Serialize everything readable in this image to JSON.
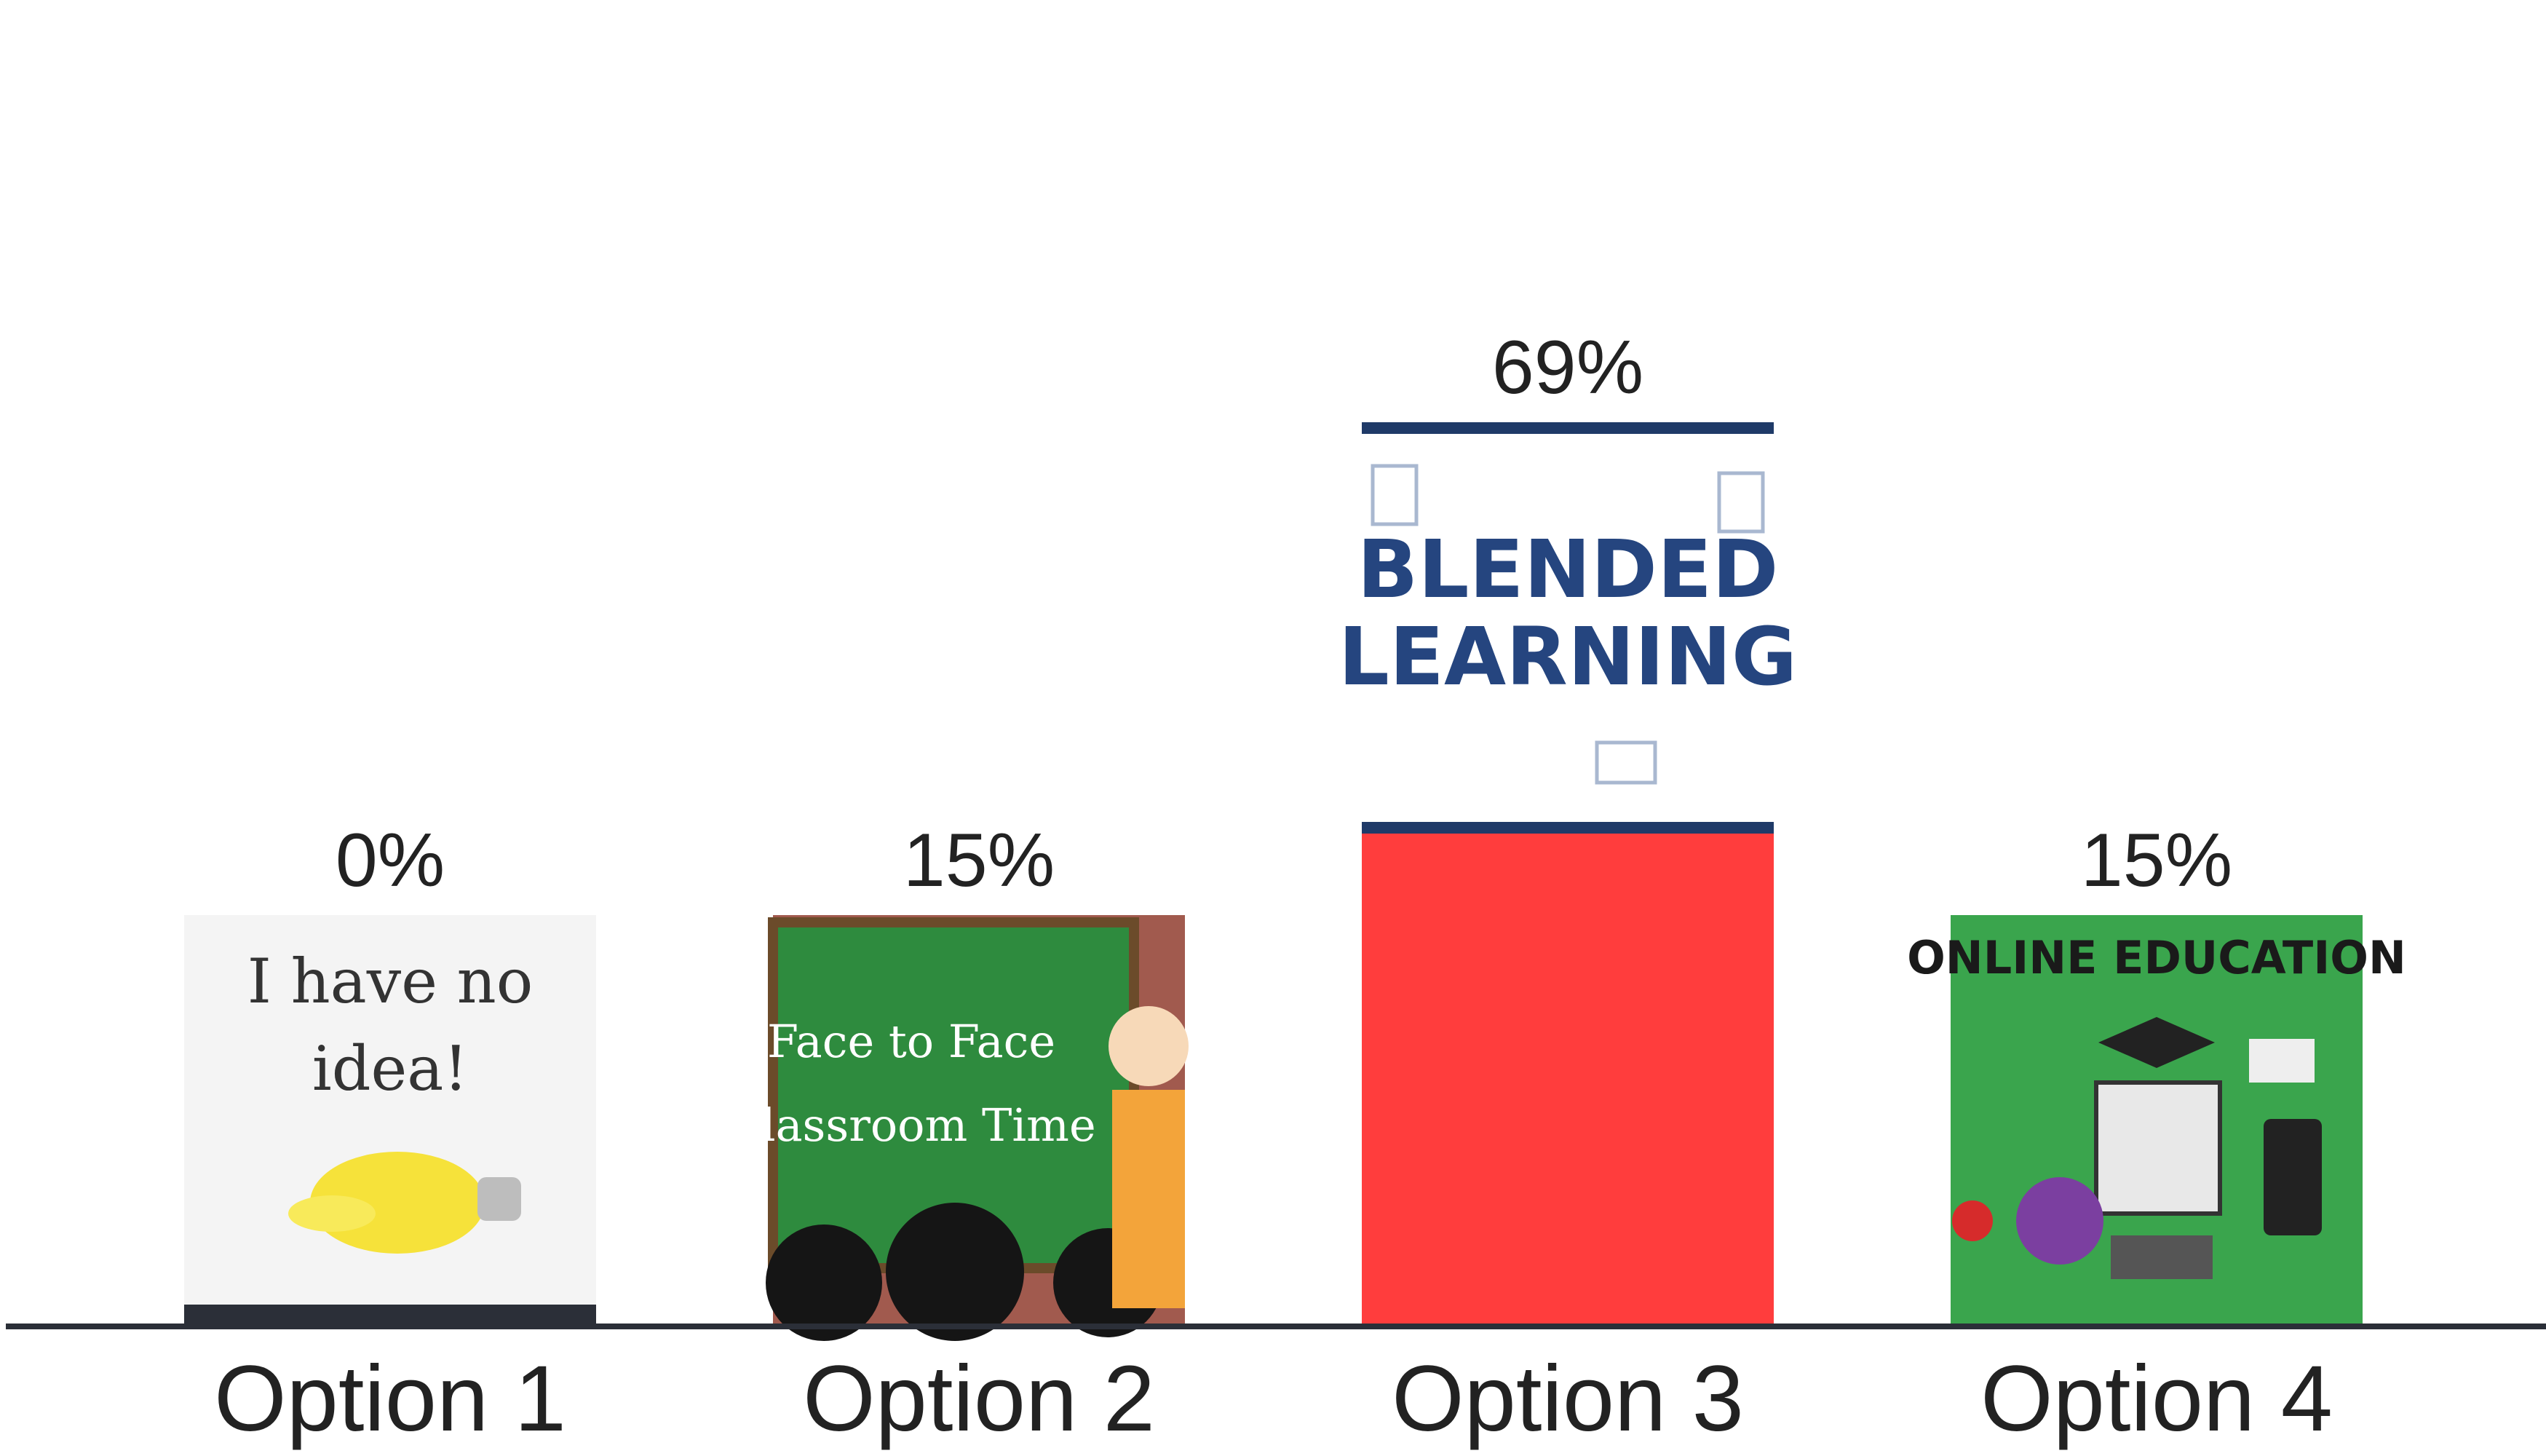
{
  "chart_data": {
    "type": "bar",
    "title": "",
    "xlabel": "",
    "ylabel": "",
    "ylim": [
      0,
      100
    ],
    "grid": false,
    "legend": "none",
    "categories": [
      "Option 1",
      "Option 2",
      "Option 3",
      "Option 4"
    ],
    "values": [
      0,
      15,
      69,
      15
    ],
    "data_labels": [
      "0%",
      "15%",
      "69%",
      "15%"
    ],
    "colors": [
      "#2b2f38",
      "#ff7fa8",
      "#ff3d3d",
      "#fbc637"
    ],
    "images": [
      {
        "icon": "broken-lightbulb-idea-image",
        "lines": [
          "I have no",
          "idea!"
        ]
      },
      {
        "icon": "face-to-face-classroom-image",
        "lines": [
          "Face to Face",
          "Classroom Time"
        ]
      },
      {
        "icon": "blended-learning-image",
        "lines": [
          "BLENDED",
          "LEARNING"
        ]
      },
      {
        "icon": "online-education-image",
        "lines": [
          "ONLINE EDUCATION"
        ]
      }
    ]
  }
}
